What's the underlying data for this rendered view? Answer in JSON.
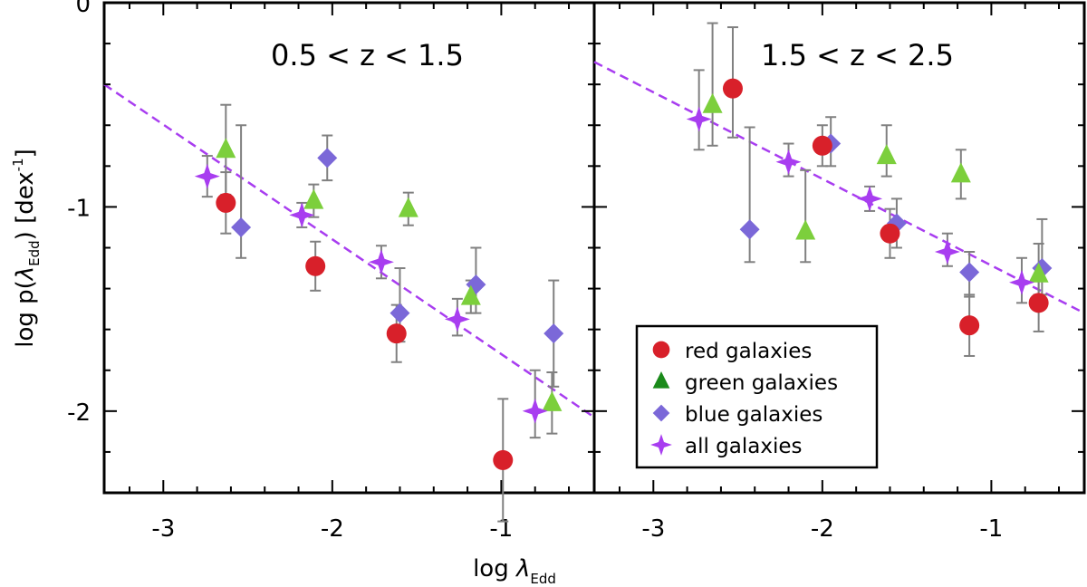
{
  "chart_data": {
    "type": "scatter",
    "xlabel": {
      "prefix": "log ",
      "symbol": "λ",
      "sub": "Edd"
    },
    "ylabel": {
      "prefix": "log p(",
      "symbol": "λ",
      "sub": "Edd",
      "mid": ") [dex",
      "sup": "-1",
      "suffix": "]"
    },
    "xlim": [
      -3.35,
      -0.45
    ],
    "ylim": [
      -2.4,
      0.0
    ],
    "x_ticks": [
      -3,
      -2,
      -1
    ],
    "x_tick_labels": [
      "-3",
      "-2",
      "-1"
    ],
    "y_ticks": [
      0,
      -1,
      -2
    ],
    "y_tick_labels": [
      "0",
      "-1",
      "-2"
    ],
    "grid": false,
    "legend_position": "bottom-right of right panel",
    "series_styles": [
      {
        "key": "red",
        "name": "red galaxies",
        "color": "#d8202a",
        "marker": "circle"
      },
      {
        "key": "green",
        "name": "green galaxies",
        "color": "#7ccf3c",
        "legend_color": "#1a8a1a",
        "marker": "triangle"
      },
      {
        "key": "blue",
        "name": "blue galaxies",
        "color": "#7b68d8",
        "marker": "diamond"
      },
      {
        "key": "all",
        "name": "all galaxies",
        "color": "#a83df0",
        "marker": "star"
      }
    ],
    "fit_line_color": "#a83df0",
    "errorbar_color": "#808080",
    "panels": [
      {
        "title": "0.5 < z < 1.5",
        "fit_line": [
          [
            -3.35,
            -0.4
          ],
          [
            -0.45,
            -2.03
          ]
        ],
        "series": {
          "red": [
            [
              -2.63,
              -0.98,
              0.15,
              0.15
            ],
            [
              -2.1,
              -1.29,
              0.12,
              0.12
            ],
            [
              -1.62,
              -1.62,
              0.14,
              0.14
            ],
            [
              -0.99,
              -2.24,
              0.3,
              0.3
            ]
          ],
          "green": [
            [
              -2.63,
              -0.72,
              0.22,
              0.22
            ],
            [
              -2.11,
              -0.97,
              0.08,
              0.08
            ],
            [
              -1.55,
              -1.01,
              0.08,
              0.08
            ],
            [
              -1.18,
              -1.44,
              0.08,
              0.08
            ],
            [
              -0.7,
              -1.96,
              0.15,
              0.15
            ]
          ],
          "blue": [
            [
              -2.54,
              -1.1,
              0.15,
              0.5
            ],
            [
              -2.03,
              -0.76,
              0.11,
              0.11
            ],
            [
              -1.6,
              -1.52,
              0.14,
              0.22
            ],
            [
              -1.15,
              -1.38,
              0.14,
              0.18
            ],
            [
              -0.69,
              -1.62,
              0.26,
              0.26
            ]
          ],
          "all": [
            [
              -2.74,
              -0.85,
              0.1,
              0.1
            ],
            [
              -2.18,
              -1.04,
              0.06,
              0.06
            ],
            [
              -1.71,
              -1.27,
              0.08,
              0.08
            ],
            [
              -1.26,
              -1.55,
              0.08,
              0.1
            ],
            [
              -0.8,
              -2.0,
              0.13,
              0.2
            ]
          ]
        }
      },
      {
        "title": "1.5 < z < 2.5",
        "fit_line": [
          [
            -3.35,
            -0.29
          ],
          [
            -0.45,
            -1.52
          ]
        ],
        "series": {
          "red": [
            [
              -2.53,
              -0.42,
              0.24,
              0.3
            ],
            [
              -2.0,
              -0.7,
              0.1,
              0.1
            ],
            [
              -1.6,
              -1.13,
              0.12,
              0.12
            ],
            [
              -1.13,
              -1.58,
              0.15,
              0.15
            ],
            [
              -0.72,
              -1.47,
              0.14,
              0.14
            ]
          ],
          "green": [
            [
              -2.65,
              -0.5,
              0.2,
              0.4
            ],
            [
              -2.1,
              -1.12,
              0.15,
              0.3
            ],
            [
              -1.62,
              -0.75,
              0.1,
              0.15
            ],
            [
              -1.18,
              -0.84,
              0.12,
              0.12
            ],
            [
              -0.72,
              -1.33,
              0.1,
              0.15
            ]
          ],
          "blue": [
            [
              -2.43,
              -1.11,
              0.16,
              0.5
            ],
            [
              -1.95,
              -0.69,
              0.11,
              0.13
            ],
            [
              -1.56,
              -1.08,
              0.12,
              0.12
            ],
            [
              -1.13,
              -1.32,
              0.12,
              0.1
            ],
            [
              -0.7,
              -1.3,
              0.13,
              0.24
            ]
          ],
          "all": [
            [
              -2.73,
              -0.57,
              0.15,
              0.24
            ],
            [
              -2.2,
              -0.78,
              0.07,
              0.09
            ],
            [
              -1.72,
              -0.96,
              0.06,
              0.06
            ],
            [
              -1.26,
              -1.22,
              0.07,
              0.09
            ],
            [
              -0.82,
              -1.37,
              0.1,
              0.12
            ]
          ]
        }
      }
    ]
  }
}
